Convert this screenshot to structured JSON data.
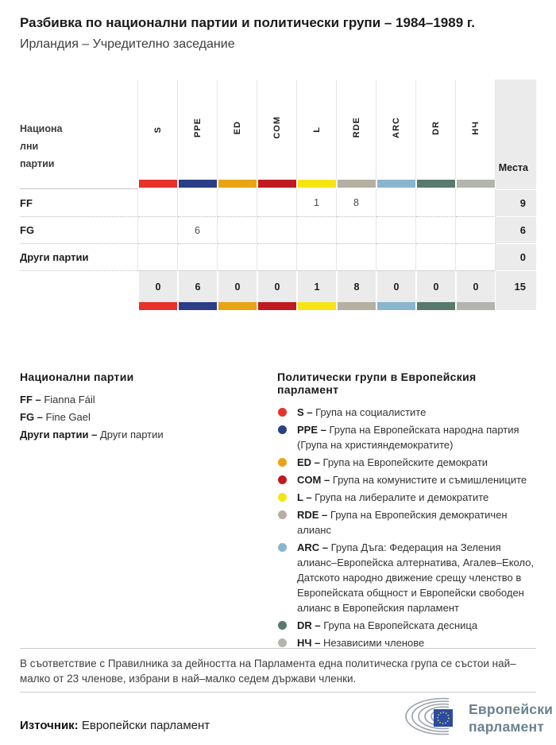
{
  "page": {
    "title": "Разбивка по национални партии и политически групи – 1984–1989 г.",
    "subtitle": "Ирландия – Учредително заседание"
  },
  "chart_data": {
    "type": "table",
    "title": "Разбивка по национални партии и политически групи – 1984–1989 г.",
    "subtitle": "Ирландия – Учредително заседание",
    "row_header_lines": [
      "Национа",
      "лни",
      "партии"
    ],
    "seats_label": "Места",
    "groups": [
      {
        "code": "S",
        "color": "#e7312a"
      },
      {
        "code": "PPE",
        "color": "#2b3f87"
      },
      {
        "code": "ED",
        "color": "#e9a413"
      },
      {
        "code": "COM",
        "color": "#c01a20"
      },
      {
        "code": "L",
        "color": "#f6e514"
      },
      {
        "code": "RDE",
        "color": "#b6b0a2"
      },
      {
        "code": "ARC",
        "color": "#8ab5ce"
      },
      {
        "code": "DR",
        "color": "#587a6e"
      },
      {
        "code": "НЧ",
        "color": "#b2b5ae"
      }
    ],
    "rows": [
      {
        "label": "FF",
        "values": [
          null,
          null,
          null,
          null,
          1,
          8,
          null,
          null,
          null
        ],
        "seats": 9
      },
      {
        "label": "FG",
        "values": [
          null,
          6,
          null,
          null,
          null,
          null,
          null,
          null,
          null
        ],
        "seats": 6
      },
      {
        "label": "Други партии",
        "values": [
          null,
          null,
          null,
          null,
          null,
          null,
          null,
          null,
          null
        ],
        "seats": 0
      }
    ],
    "totals": {
      "values": [
        0,
        6,
        0,
        0,
        1,
        8,
        0,
        0,
        0
      ],
      "seats": 15
    }
  },
  "legend_parties": {
    "heading": "Национални партии",
    "items": [
      {
        "abbr": "FF –",
        "name": "Fianna Fáil"
      },
      {
        "abbr": "FG –",
        "name": "Fine Gael"
      },
      {
        "abbr": "Други партии –",
        "name": "Други партии"
      }
    ]
  },
  "legend_groups": {
    "heading": "Политически групи в Европейския парламент",
    "items": [
      {
        "abbr": "S –",
        "color": "#e7312a",
        "name": "Група на социалистите"
      },
      {
        "abbr": "PPE –",
        "color": "#2b3f87",
        "name": "Група на Европейската народна партия (Група на християндемократите)"
      },
      {
        "abbr": "ED –",
        "color": "#e9a413",
        "name": "Група на Европейските демократи"
      },
      {
        "abbr": "COM –",
        "color": "#c01a20",
        "name": "Група на комунистите и съмишлениците"
      },
      {
        "abbr": "L –",
        "color": "#f6e514",
        "name": "Група на либералите и демократите"
      },
      {
        "abbr": "RDE –",
        "color": "#b6b0a2",
        "name": "Група на Европейския демократичен алианс"
      },
      {
        "abbr": "ARC –",
        "color": "#8ab5ce",
        "name": "Група Дъга: Федерация на Зеления алианс–Европейска алтернатива, Агалев–Еколо, Датското народно движение срещу членство в Европейската общност и Европейски свободен алианс в Европейския парламент"
      },
      {
        "abbr": "DR –",
        "color": "#587a6e",
        "name": "Група на Европейската десница"
      },
      {
        "abbr": "НЧ –",
        "color": "#b2b5ae",
        "name": "Независими членове"
      }
    ]
  },
  "footer": {
    "note": "В съответствие с Правилника за дейността на Парламента една политическа група се състои най–малко от 23 членове, избрани в най–малко седем държави членки.",
    "source_label": "Източник:",
    "source_value": " Европейски парламент",
    "logo_line1": "Европейски",
    "logo_line2": "парламент"
  }
}
